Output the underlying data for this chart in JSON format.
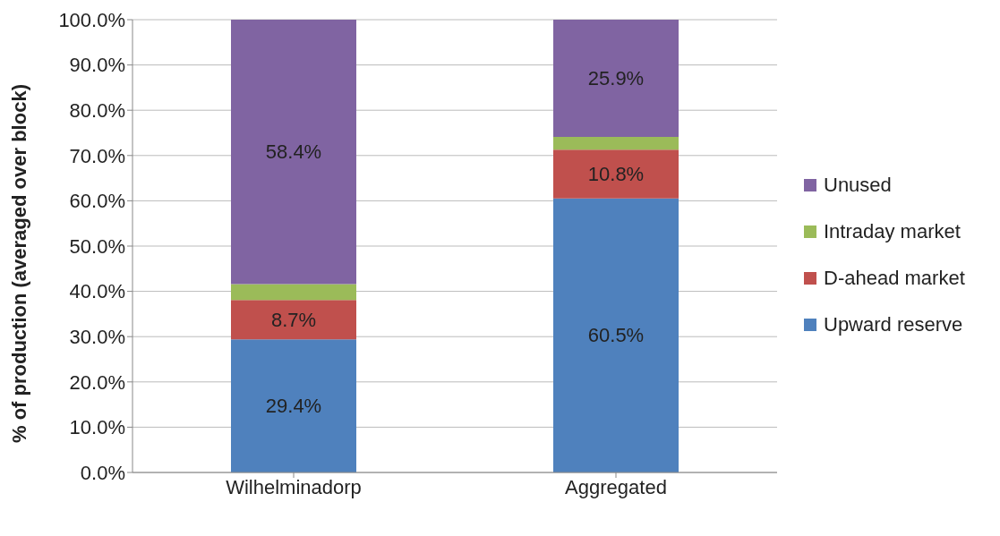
{
  "chart_data": {
    "type": "bar",
    "stacked": true,
    "ylabel": "% of production (averaged over block)",
    "categories": [
      "Wilhelminadorp",
      "Aggregated"
    ],
    "series": [
      {
        "name": "Upward reserve",
        "color": "#4f81bd",
        "values": [
          29.4,
          60.5
        ],
        "value_labels": [
          "29.4%",
          "60.5%"
        ]
      },
      {
        "name": "D-ahead market",
        "color": "#c0504d",
        "values": [
          8.7,
          10.8
        ],
        "value_labels": [
          "8.7%",
          "10.8%"
        ]
      },
      {
        "name": "Intraday market",
        "color": "#9bbb59",
        "values": [
          3.5,
          2.8
        ],
        "value_labels": [
          null,
          null
        ]
      },
      {
        "name": "Unused",
        "color": "#8064a2",
        "values": [
          58.4,
          25.9
        ],
        "value_labels": [
          "58.4%",
          "25.9%"
        ]
      }
    ],
    "ylim": [
      0,
      100
    ],
    "yticks": [
      {
        "value": 0,
        "label": "0.0%"
      },
      {
        "value": 10,
        "label": "10.0%"
      },
      {
        "value": 20,
        "label": "20.0%"
      },
      {
        "value": 30,
        "label": "30.0%"
      },
      {
        "value": 40,
        "label": "40.0%"
      },
      {
        "value": 50,
        "label": "50.0%"
      },
      {
        "value": 60,
        "label": "60.0%"
      },
      {
        "value": 70,
        "label": "70.0%"
      },
      {
        "value": 80,
        "label": "80.0%"
      },
      {
        "value": 90,
        "label": "90.0%"
      },
      {
        "value": 100,
        "label": "100.0%"
      }
    ],
    "grid": "y",
    "legend": "right"
  }
}
